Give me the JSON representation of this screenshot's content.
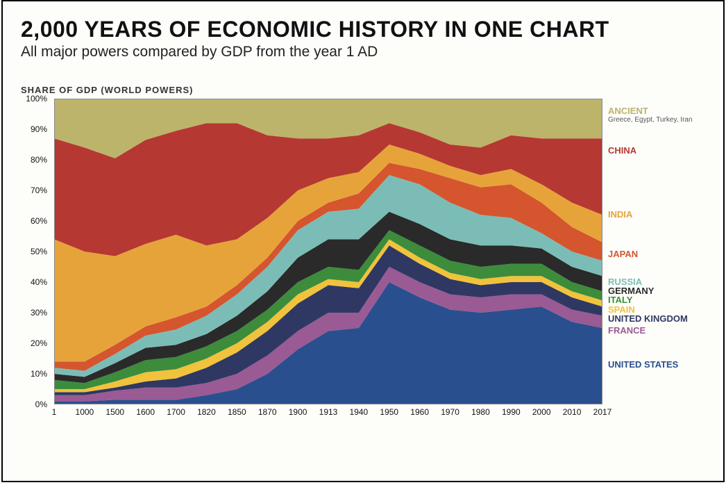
{
  "title": "2,000 YEARS OF ECONOMIC HISTORY IN ONE CHART",
  "subtitle": "All major powers compared by GDP from the year 1 AD",
  "axis_title": "SHARE OF GDP (WORLD POWERS)",
  "chart": {
    "type": "area-stacked",
    "background_color": "#fdfdfa",
    "grid_color": "#ddd8cc",
    "ylim": [
      0,
      100
    ],
    "ytick_step": 10,
    "y_format": "percent",
    "x_categories": [
      "1",
      "1000",
      "1500",
      "1600",
      "1700",
      "1820",
      "1850",
      "1870",
      "1900",
      "1913",
      "1940",
      "1950",
      "1960",
      "1970",
      "1980",
      "1990",
      "2000",
      "2010",
      "2017"
    ],
    "series_order_bottom_to_top": [
      "United States",
      "France",
      "United Kingdom",
      "Spain",
      "Italy",
      "Germany",
      "Russia",
      "Japan",
      "India",
      "China",
      "Ancient"
    ],
    "series": {
      "United States": {
        "label": "UNITED STATES",
        "color": "#2a4f8f",
        "values": [
          1,
          1,
          1.5,
          1.5,
          1.5,
          3,
          5,
          10,
          18,
          24,
          25,
          40,
          35,
          31,
          30,
          31,
          32,
          27,
          25
        ]
      },
      "France": {
        "label": "FRANCE",
        "color": "#9a5a94",
        "values": [
          2,
          2,
          3,
          4,
          4,
          4,
          5,
          6,
          6,
          6,
          5,
          5,
          5,
          5,
          5,
          5,
          4,
          4,
          4
        ]
      },
      "United Kingdom": {
        "label": "UNITED KINGDOM",
        "color": "#2f3863",
        "values": [
          1,
          1,
          1,
          2,
          3,
          5,
          7,
          8,
          9,
          9,
          8,
          7,
          6,
          5,
          4,
          4,
          4,
          4,
          3
        ]
      },
      "Spain": {
        "label": "SPAIN",
        "color": "#f1c23b",
        "values": [
          1,
          1,
          2,
          3,
          3,
          3,
          3,
          3,
          3,
          2,
          2,
          2,
          2,
          2,
          2,
          2,
          2,
          2,
          2
        ]
      },
      "Italy": {
        "label": "ITALY",
        "color": "#3c8c3c",
        "values": [
          3,
          2,
          3,
          4,
          4,
          4,
          4,
          4,
          4,
          4,
          4,
          3,
          4,
          4,
          4,
          4,
          4,
          3,
          3
        ]
      },
      "Germany": {
        "label": "GERMANY",
        "color": "#2a2a2a",
        "values": [
          2,
          2,
          3,
          4,
          4,
          4,
          5,
          6,
          8,
          9,
          10,
          6,
          7,
          7,
          7,
          6,
          5,
          5,
          5
        ]
      },
      "Russia": {
        "label": "RUSSIA",
        "color": "#7bbdb6",
        "values": [
          2,
          2,
          3,
          4,
          5,
          6,
          7,
          8,
          9,
          9,
          10,
          12,
          13,
          12,
          10,
          9,
          5,
          5,
          5
        ]
      },
      "Japan": {
        "label": "JAPAN",
        "color": "#d5552f",
        "values": [
          2,
          3,
          3,
          3,
          4,
          3,
          3,
          3,
          3,
          3,
          5,
          4,
          5,
          8,
          9,
          11,
          10,
          8,
          6
        ]
      },
      "India": {
        "label": "INDIA",
        "color": "#e6a33a",
        "values": [
          40,
          36,
          29,
          27,
          27,
          20,
          15,
          13,
          10,
          8,
          7,
          6,
          5,
          4,
          4,
          5,
          6,
          8,
          9
        ]
      },
      "China": {
        "label": "CHINA",
        "color": "#b63832",
        "values": [
          33,
          34,
          32,
          34,
          34,
          40,
          38,
          27,
          17,
          13,
          12,
          7,
          7,
          7,
          9,
          11,
          15,
          21,
          25
        ]
      },
      "Ancient": {
        "label": "ANCIENT",
        "sublabel": "Greece, Egypt, Turkey, Iran",
        "color": "#bcb46a",
        "values": [
          12,
          9,
          6,
          5,
          4,
          2,
          2,
          2,
          2,
          2,
          2,
          2,
          2,
          2,
          2,
          2,
          2,
          2,
          2
        ]
      }
    },
    "legend_positions_pct": {
      "Ancient": 96,
      "China": 83,
      "India": 62,
      "Japan": 49,
      "Russia": 40,
      "Germany": 37,
      "Italy": 34,
      "Spain": 31,
      "United Kingdom": 28,
      "France": 24,
      "United States": 13
    },
    "title_fontsize": 32,
    "subtitle_fontsize": 21,
    "label_fontsize": 12,
    "legend_fontsize": 13
  }
}
